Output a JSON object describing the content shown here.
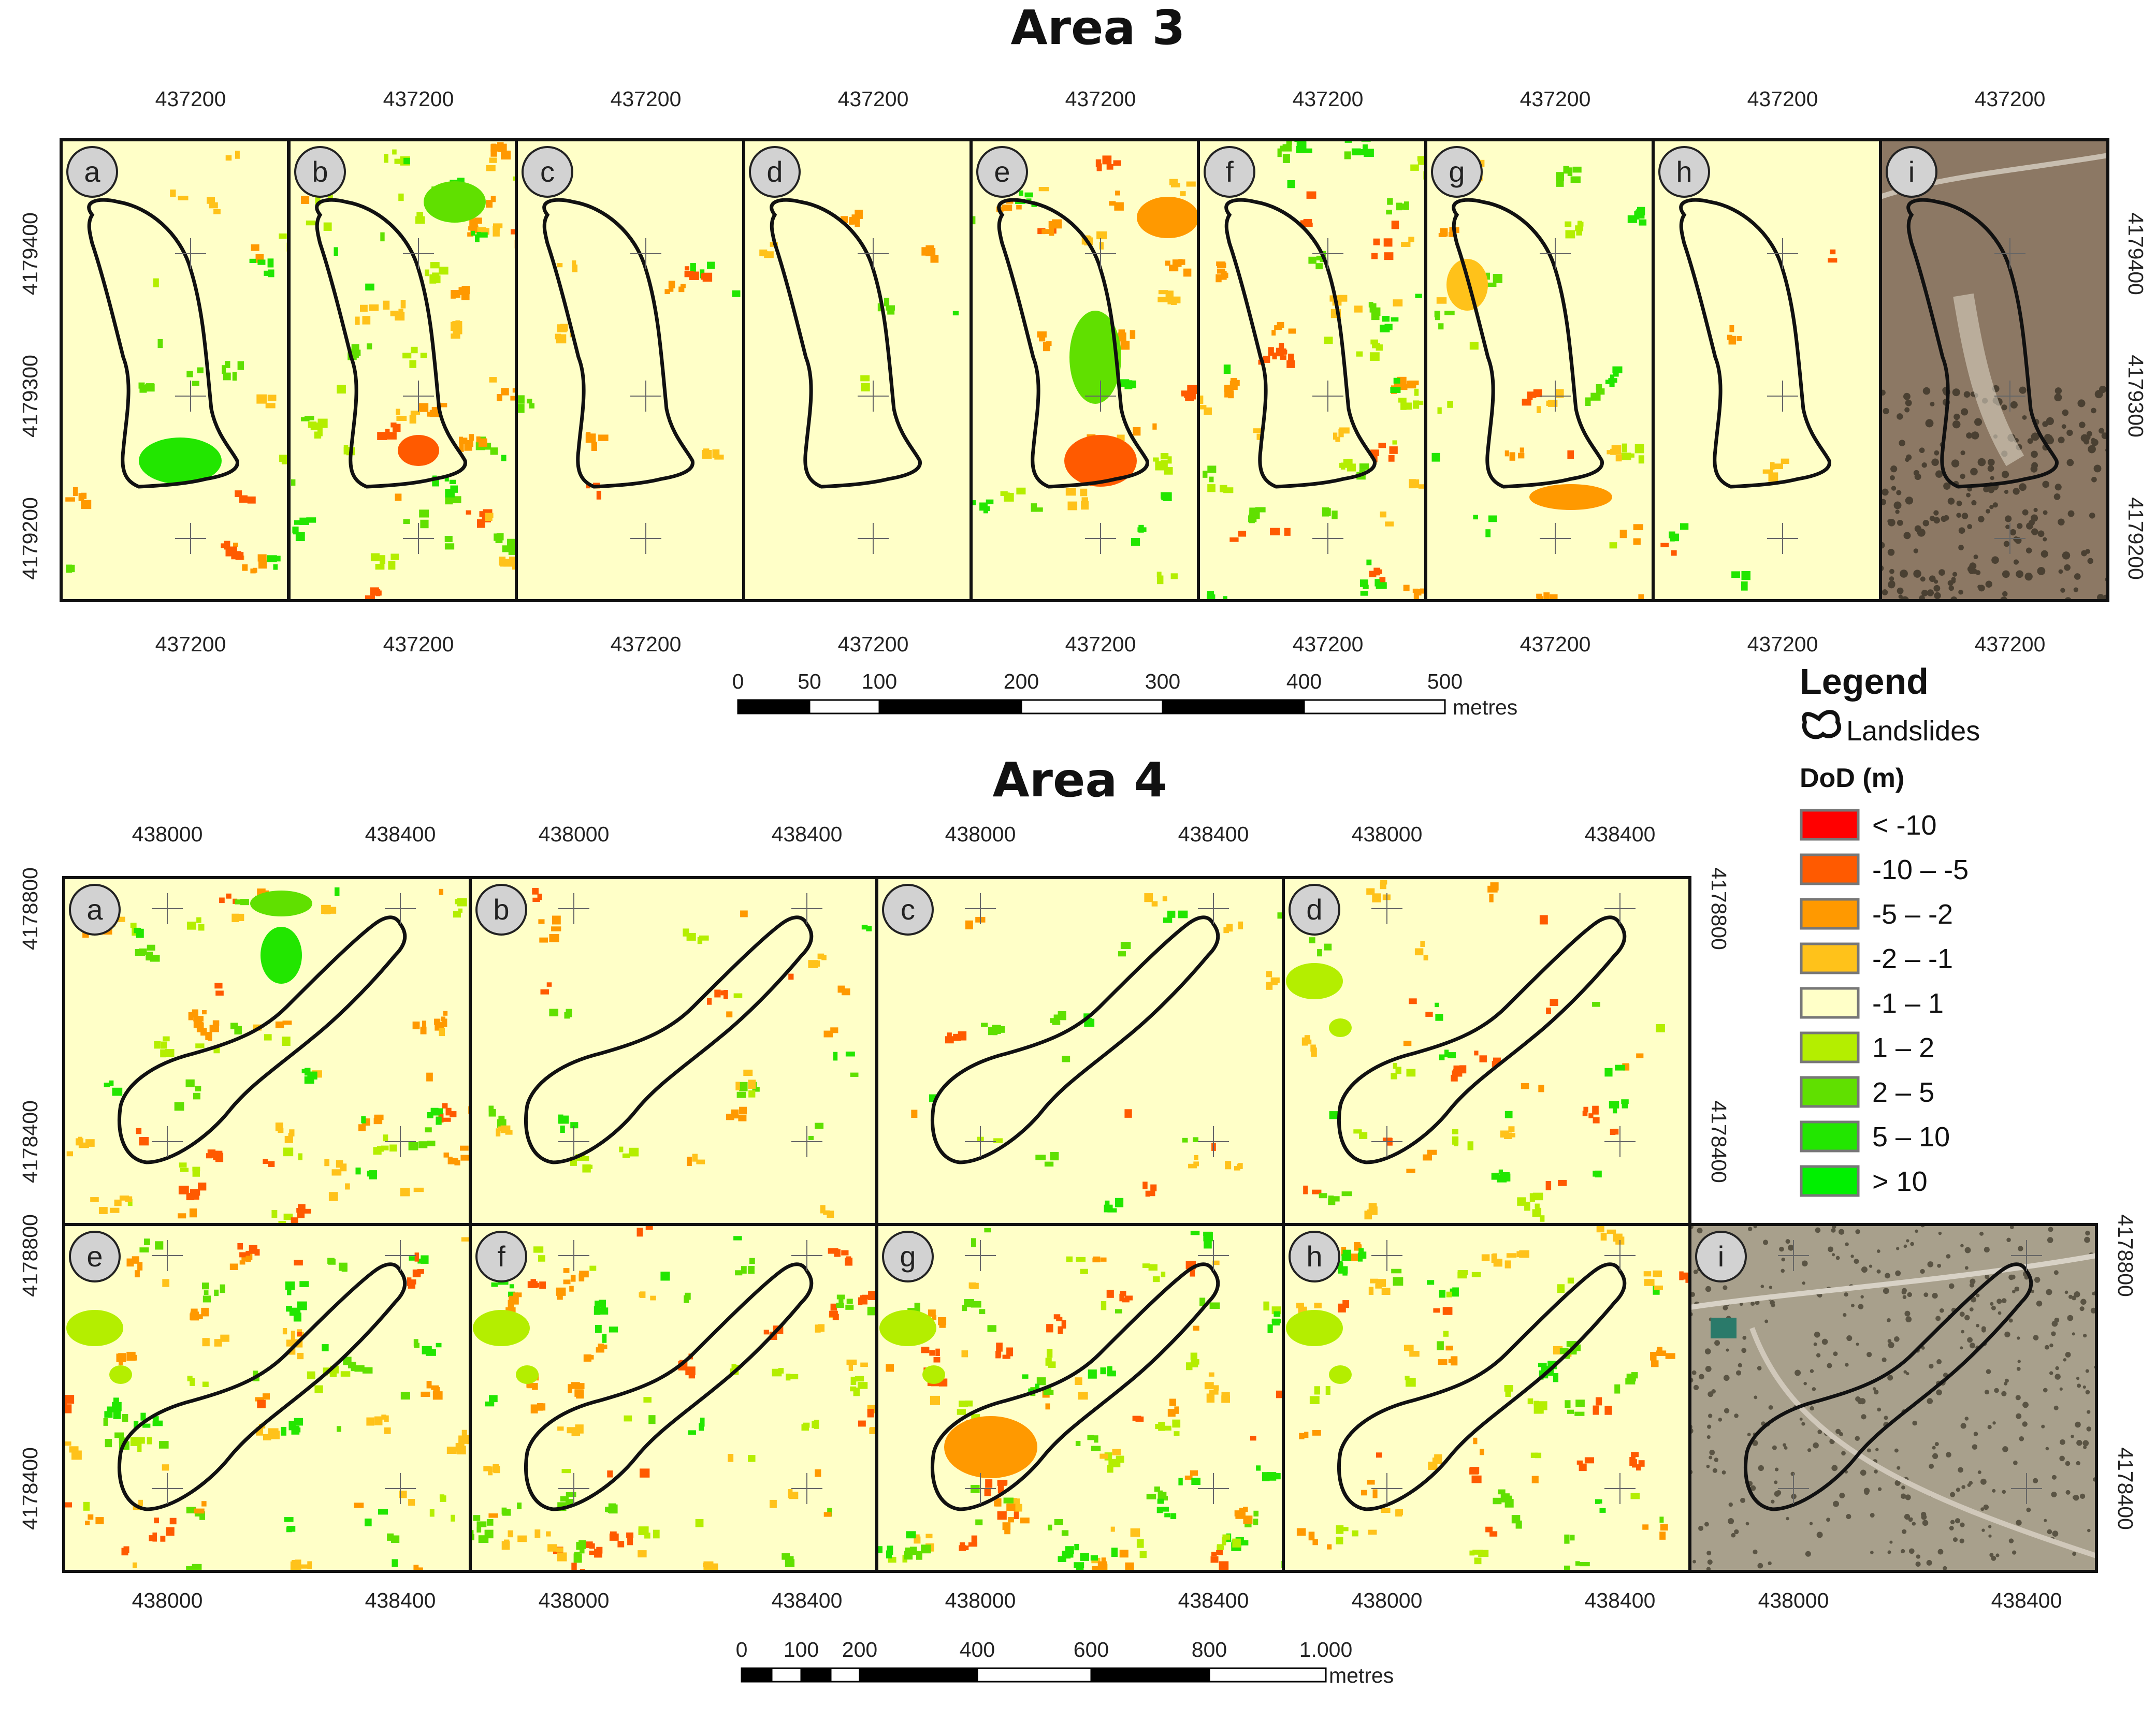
{
  "dod_colors": {
    "background": "#ffffc8",
    "lt_m10": "#ff0000",
    "m10_m5": "#ff5a00",
    "m5_m2": "#ff9900",
    "m2_m1": "#ffc21a",
    "m1_1": "#ffffc8",
    "p1_2": "#b4ee00",
    "p2_5": "#60e000",
    "p5_10": "#22e600",
    "gt_10": "#00f000",
    "ortho_area3": "#8c7864",
    "ortho_area4": "#a8a08c"
  },
  "area3": {
    "title": "Area 3",
    "easting_label": "437200",
    "northing_labels": [
      "4179400",
      "4179300",
      "4179200"
    ],
    "panel_letters": [
      "a",
      "b",
      "c",
      "d",
      "e",
      "f",
      "g",
      "h",
      "i"
    ],
    "scale": {
      "labels": [
        "0",
        "50",
        "100",
        "200",
        "300",
        "400",
        "500"
      ],
      "unit": "metres"
    }
  },
  "area4": {
    "title": "Area 4",
    "easting_labels": [
      "438000",
      "438400"
    ],
    "northing_labels": [
      "4178800",
      "4178400"
    ],
    "top_row_letters": [
      "a",
      "b",
      "c",
      "d"
    ],
    "bottom_row_letters": [
      "e",
      "f",
      "g",
      "h",
      "i"
    ],
    "scale": {
      "labels": [
        "0",
        "100",
        "200",
        "400",
        "600",
        "800",
        "1.000"
      ],
      "unit": "metres"
    }
  },
  "legend": {
    "title": "Legend",
    "landslides_label": "Landslides",
    "dod_title": "DoD (m)",
    "items": [
      {
        "label": "< -10",
        "color": "#ff0000"
      },
      {
        "label": "-10 – -5",
        "color": "#ff5a00"
      },
      {
        "label": "-5 – -2",
        "color": "#ff9900"
      },
      {
        "label": "-2 – -1",
        "color": "#ffc21a"
      },
      {
        "label": "-1 – 1",
        "color": "#ffffc8"
      },
      {
        "label": "1 – 2",
        "color": "#b4ee00"
      },
      {
        "label": "2 – 5",
        "color": "#60e000"
      },
      {
        "label": "5 – 10",
        "color": "#22e600"
      },
      {
        "label": "> 10",
        "color": "#00f000"
      }
    ]
  }
}
